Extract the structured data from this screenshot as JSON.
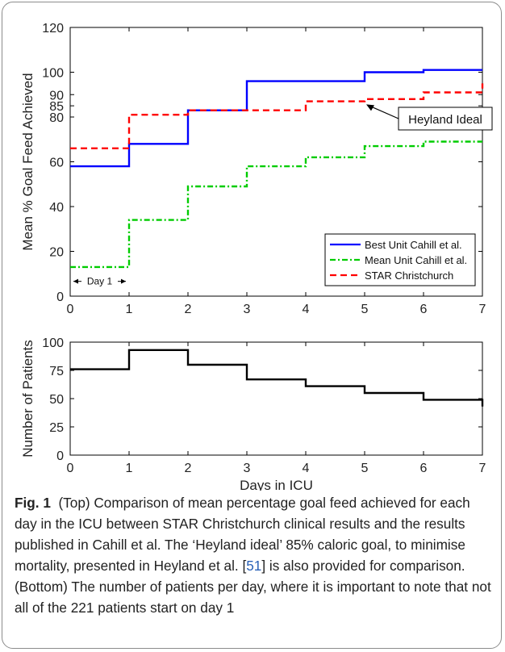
{
  "chart_data": [
    {
      "type": "line",
      "title": "",
      "xlabel": "",
      "ylabel": "Mean % Goal Feed Achieved",
      "xlim": [
        0,
        7
      ],
      "ylim": [
        0,
        120
      ],
      "xticks": [
        "0",
        "1",
        "2",
        "3",
        "4",
        "5",
        "6",
        "7"
      ],
      "yticks": [
        "0",
        "20",
        "40",
        "60",
        "80",
        "85",
        "90",
        "100",
        "120"
      ],
      "ytick_values": [
        0,
        20,
        40,
        60,
        80,
        85,
        90,
        100,
        120
      ],
      "step": true,
      "grid": false,
      "legend_position": "bottom-right",
      "series": [
        {
          "name": "Best Unit Cahill et al.",
          "color": "#0000ff",
          "dash": "solid",
          "x": [
            0,
            1,
            1,
            2,
            2,
            3,
            3,
            5,
            5,
            6,
            6,
            7
          ],
          "y": [
            58,
            58,
            68,
            68,
            83,
            83,
            96,
            96,
            100,
            100,
            101,
            101
          ]
        },
        {
          "name": "Mean Unit Cahill et al.",
          "color": "#00cc00",
          "dash": "dashdot",
          "x": [
            0,
            1,
            1,
            2,
            2,
            3,
            3,
            4,
            4,
            5,
            5,
            6,
            6,
            7
          ],
          "y": [
            13,
            13,
            34,
            34,
            49,
            49,
            58,
            58,
            62,
            62,
            67,
            67,
            69,
            69
          ]
        },
        {
          "name": "STAR Christchurch",
          "color": "#ff0000",
          "dash": "dashed",
          "x": [
            0,
            1,
            1,
            2,
            2,
            3,
            3,
            4,
            4,
            5,
            5,
            6,
            6,
            7,
            7
          ],
          "y": [
            66,
            66,
            81,
            81,
            83,
            83,
            83,
            83,
            87,
            87,
            88,
            88,
            91,
            91,
            95
          ]
        }
      ],
      "annotations": [
        {
          "text": "Heyland Ideal",
          "points_to": [
            5,
            86
          ]
        },
        {
          "text": "Day 1",
          "span_x": [
            0,
            1
          ],
          "y": 3
        }
      ]
    },
    {
      "type": "line",
      "title": "",
      "xlabel": "Days in ICU",
      "ylabel": "Number of Patients",
      "xlim": [
        0,
        7
      ],
      "ylim": [
        0,
        100
      ],
      "xticks": [
        "0",
        "1",
        "2",
        "3",
        "4",
        "5",
        "6",
        "7"
      ],
      "yticks": [
        "0",
        "25",
        "50",
        "75",
        "100"
      ],
      "ytick_values": [
        0,
        25,
        50,
        75,
        100
      ],
      "step": true,
      "grid": false,
      "series": [
        {
          "name": "",
          "color": "#000000",
          "dash": "solid",
          "x": [
            0,
            1,
            1,
            2,
            2,
            3,
            3,
            4,
            4,
            5,
            5,
            6,
            6,
            7,
            7
          ],
          "y": [
            76,
            76,
            93,
            93,
            80,
            80,
            67,
            67,
            61,
            61,
            55,
            55,
            49,
            49,
            43
          ]
        }
      ]
    }
  ],
  "caption": {
    "label": "Fig. 1",
    "text_before_ref": "(Top) Comparison of mean percentage goal feed achieved for each day in the ICU between STAR Christchurch clinical results and the results published in Cahill et al. The ‘Heyland ideal’ 85% caloric goal, to minimise mortality, presented in Heyland et al. [",
    "ref": "51",
    "text_after_ref": "] is also provided for comparison. (Bottom) The number of patients per day, where it is important to note that not all of the 221 patients start on day 1"
  }
}
